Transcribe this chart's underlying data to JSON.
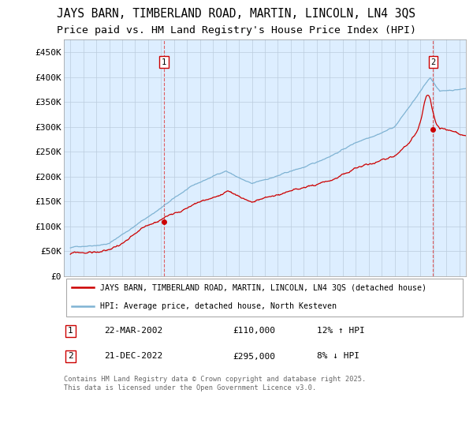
{
  "title": "JAYS BARN, TIMBERLAND ROAD, MARTIN, LINCOLN, LN4 3QS",
  "subtitle": "Price paid vs. HM Land Registry's House Price Index (HPI)",
  "hpi_label": "HPI: Average price, detached house, North Kesteven",
  "house_label": "JAYS BARN, TIMBERLAND ROAD, MARTIN, LINCOLN, LN4 3QS (detached house)",
  "point1_date": "22-MAR-2002",
  "point1_price": 110000,
  "point1_hpi_rel": "12% ↑ HPI",
  "point2_date": "21-DEC-2022",
  "point2_price": 295000,
  "point2_hpi_rel": "8% ↓ HPI",
  "vline1_x": 2002.22,
  "vline2_x": 2022.97,
  "ylim": [
    0,
    475000
  ],
  "yticks": [
    0,
    50000,
    100000,
    150000,
    200000,
    250000,
    300000,
    350000,
    400000,
    450000
  ],
  "xlim": [
    1994.5,
    2025.5
  ],
  "house_color": "#cc0000",
  "hpi_color": "#7fb3d3",
  "vline_color": "#dd4444",
  "chart_bg": "#ddeeff",
  "background_color": "#ffffff",
  "grid_color": "#bbccdd",
  "footer": "Contains HM Land Registry data © Crown copyright and database right 2025.\nThis data is licensed under the Open Government Licence v3.0.",
  "title_fontsize": 10.5,
  "subtitle_fontsize": 9.5
}
